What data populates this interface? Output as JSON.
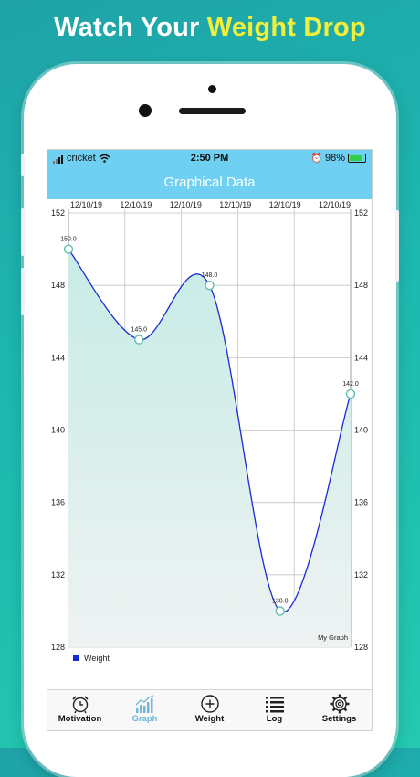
{
  "headline": {
    "part1": "Watch Your",
    "part2": "Weight Drop"
  },
  "status_bar": {
    "carrier": "cricket",
    "time": "2:50 PM",
    "battery": "98%"
  },
  "nav": {
    "title": "Graphical Data"
  },
  "chart_data": {
    "type": "line",
    "x_labels": [
      "12/10/19",
      "12/10/19",
      "12/10/19",
      "12/10/19",
      "12/10/19",
      "12/10/19"
    ],
    "series": [
      {
        "name": "Weight",
        "values": [
          150.0,
          145.0,
          148.0,
          130.0,
          142.0
        ],
        "color": "#1a2ad6"
      }
    ],
    "data_labels": [
      "150.0",
      "145.0",
      "148.0",
      "130.0",
      "142.0"
    ],
    "y_ticks": [
      "152",
      "148",
      "144",
      "140",
      "136",
      "132",
      "128"
    ],
    "ylim": [
      128,
      152
    ],
    "grid": true,
    "legend": "bottom-left",
    "description": "My Graph"
  },
  "tabs": [
    {
      "label": "Motivation",
      "icon": "alarm-clock-icon"
    },
    {
      "label": "Graph",
      "icon": "graph-icon",
      "active": true
    },
    {
      "label": "Weight",
      "icon": "plus-circle-icon"
    },
    {
      "label": "Log",
      "icon": "list-icon"
    },
    {
      "label": "Settings",
      "icon": "gear-icon"
    }
  ],
  "colors": {
    "accent": "#6fd0f2",
    "headline_accent": "#f2ee3c",
    "line": "#1a2ad6",
    "marker": "#5fbfb3"
  }
}
